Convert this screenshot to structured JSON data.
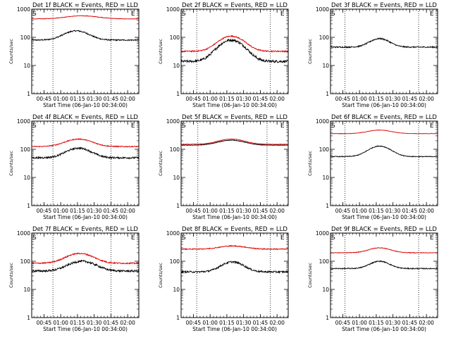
{
  "chart_data": {
    "type": "line",
    "xlabel": "Start Time (06-Jan-10 00:34:00)",
    "ylabel": "Counts/sec",
    "y_scale": "log",
    "ylim": [
      1,
      1000
    ],
    "y_ticks": [
      {
        "value": 1,
        "label": "1"
      },
      {
        "value": 10,
        "label": "10"
      },
      {
        "value": 100,
        "label": "100"
      },
      {
        "value": 1000,
        "label": "1000"
      }
    ],
    "x_range_minutes": [
      0,
      96
    ],
    "x_ticks": [
      {
        "minute": 11,
        "label": "00:45"
      },
      {
        "minute": 26,
        "label": "01:00"
      },
      {
        "minute": 41,
        "label": "01:15"
      },
      {
        "minute": 56,
        "label": "01:30"
      },
      {
        "minute": 71,
        "label": "01:45"
      },
      {
        "minute": 86,
        "label": "02:00"
      }
    ],
    "markers": {
      "start_label": "S",
      "end_label": "E",
      "start_minute": 0.3,
      "end_minute": 91.5
    },
    "dotted_lines_minutes": [
      [
        19,
        71
      ],
      [
        14,
        80
      ],
      [
        13,
        79
      ],
      [
        19,
        71
      ],
      [
        15,
        77
      ],
      [
        13,
        79
      ],
      [
        19,
        71
      ],
      [
        14,
        80
      ],
      [
        13,
        79
      ]
    ],
    "panels": [
      {
        "title": "Det 1f BLACK = Events, RED = LLD",
        "series": [
          {
            "color": "#000000",
            "base": 80,
            "peak": 170,
            "peak_minute": 40,
            "width": 10,
            "noise": 0.05
          },
          {
            "color": "#dd0000",
            "base": 450,
            "peak": 580,
            "peak_minute": 45,
            "width": 14,
            "noise": 0.02
          }
        ]
      },
      {
        "title": "Det 2f BLACK = Events, RED = LLD",
        "series": [
          {
            "color": "#000000",
            "base": 14,
            "peak": 80,
            "peak_minute": 45,
            "width": 10,
            "noise": 0.1
          },
          {
            "color": "#dd0000",
            "base": 32,
            "peak": 110,
            "peak_minute": 45,
            "width": 10,
            "noise": 0.05
          }
        ]
      },
      {
        "title": "Det 3f BLACK = Events, RED = LLD",
        "series": [
          {
            "color": "#000000",
            "base": 45,
            "peak": 90,
            "peak_minute": 44,
            "width": 8,
            "noise": 0.05
          }
        ]
      },
      {
        "title": "Det 4f BLACK = Events, RED = LLD",
        "series": [
          {
            "color": "#000000",
            "base": 50,
            "peak": 110,
            "peak_minute": 42,
            "width": 10,
            "noise": 0.07
          },
          {
            "color": "#dd0000",
            "base": 125,
            "peak": 230,
            "peak_minute": 42,
            "width": 11,
            "noise": 0.04
          }
        ]
      },
      {
        "title": "Det 5f BLACK = Events, RED = LLD",
        "series": [
          {
            "color": "#000000",
            "base": 140,
            "peak": 210,
            "peak_minute": 45,
            "width": 11,
            "noise": 0.02
          },
          {
            "color": "#dd0000",
            "base": 150,
            "peak": 230,
            "peak_minute": 45,
            "width": 11,
            "noise": 0.02
          }
        ]
      },
      {
        "title": "Det 6f BLACK = Events, RED = LLD",
        "series": [
          {
            "color": "#000000",
            "base": 55,
            "peak": 130,
            "peak_minute": 44,
            "width": 9,
            "noise": 0.03
          },
          {
            "color": "#dd0000",
            "base": 360,
            "peak": 480,
            "peak_minute": 44,
            "width": 10,
            "noise": 0.015
          }
        ]
      },
      {
        "title": "Det 7f BLACK = Events, RED = LLD",
        "series": [
          {
            "color": "#000000",
            "base": 45,
            "peak": 100,
            "peak_minute": 45,
            "width": 11,
            "noise": 0.08
          },
          {
            "color": "#dd0000",
            "base": 85,
            "peak": 190,
            "peak_minute": 43,
            "width": 11,
            "noise": 0.05
          }
        ]
      },
      {
        "title": "Det 8f BLACK = Events, RED = LLD",
        "series": [
          {
            "color": "#000000",
            "base": 42,
            "peak": 95,
            "peak_minute": 46,
            "width": 9,
            "noise": 0.07
          },
          {
            "color": "#dd0000",
            "base": 270,
            "peak": 350,
            "peak_minute": 46,
            "width": 11,
            "noise": 0.04
          }
        ]
      },
      {
        "title": "Det 9f BLACK = Events, RED = LLD",
        "series": [
          {
            "color": "#000000",
            "base": 55,
            "peak": 100,
            "peak_minute": 44,
            "width": 8,
            "noise": 0.04
          },
          {
            "color": "#dd0000",
            "base": 200,
            "peak": 300,
            "peak_minute": 44,
            "width": 9,
            "noise": 0.025
          }
        ]
      }
    ]
  }
}
